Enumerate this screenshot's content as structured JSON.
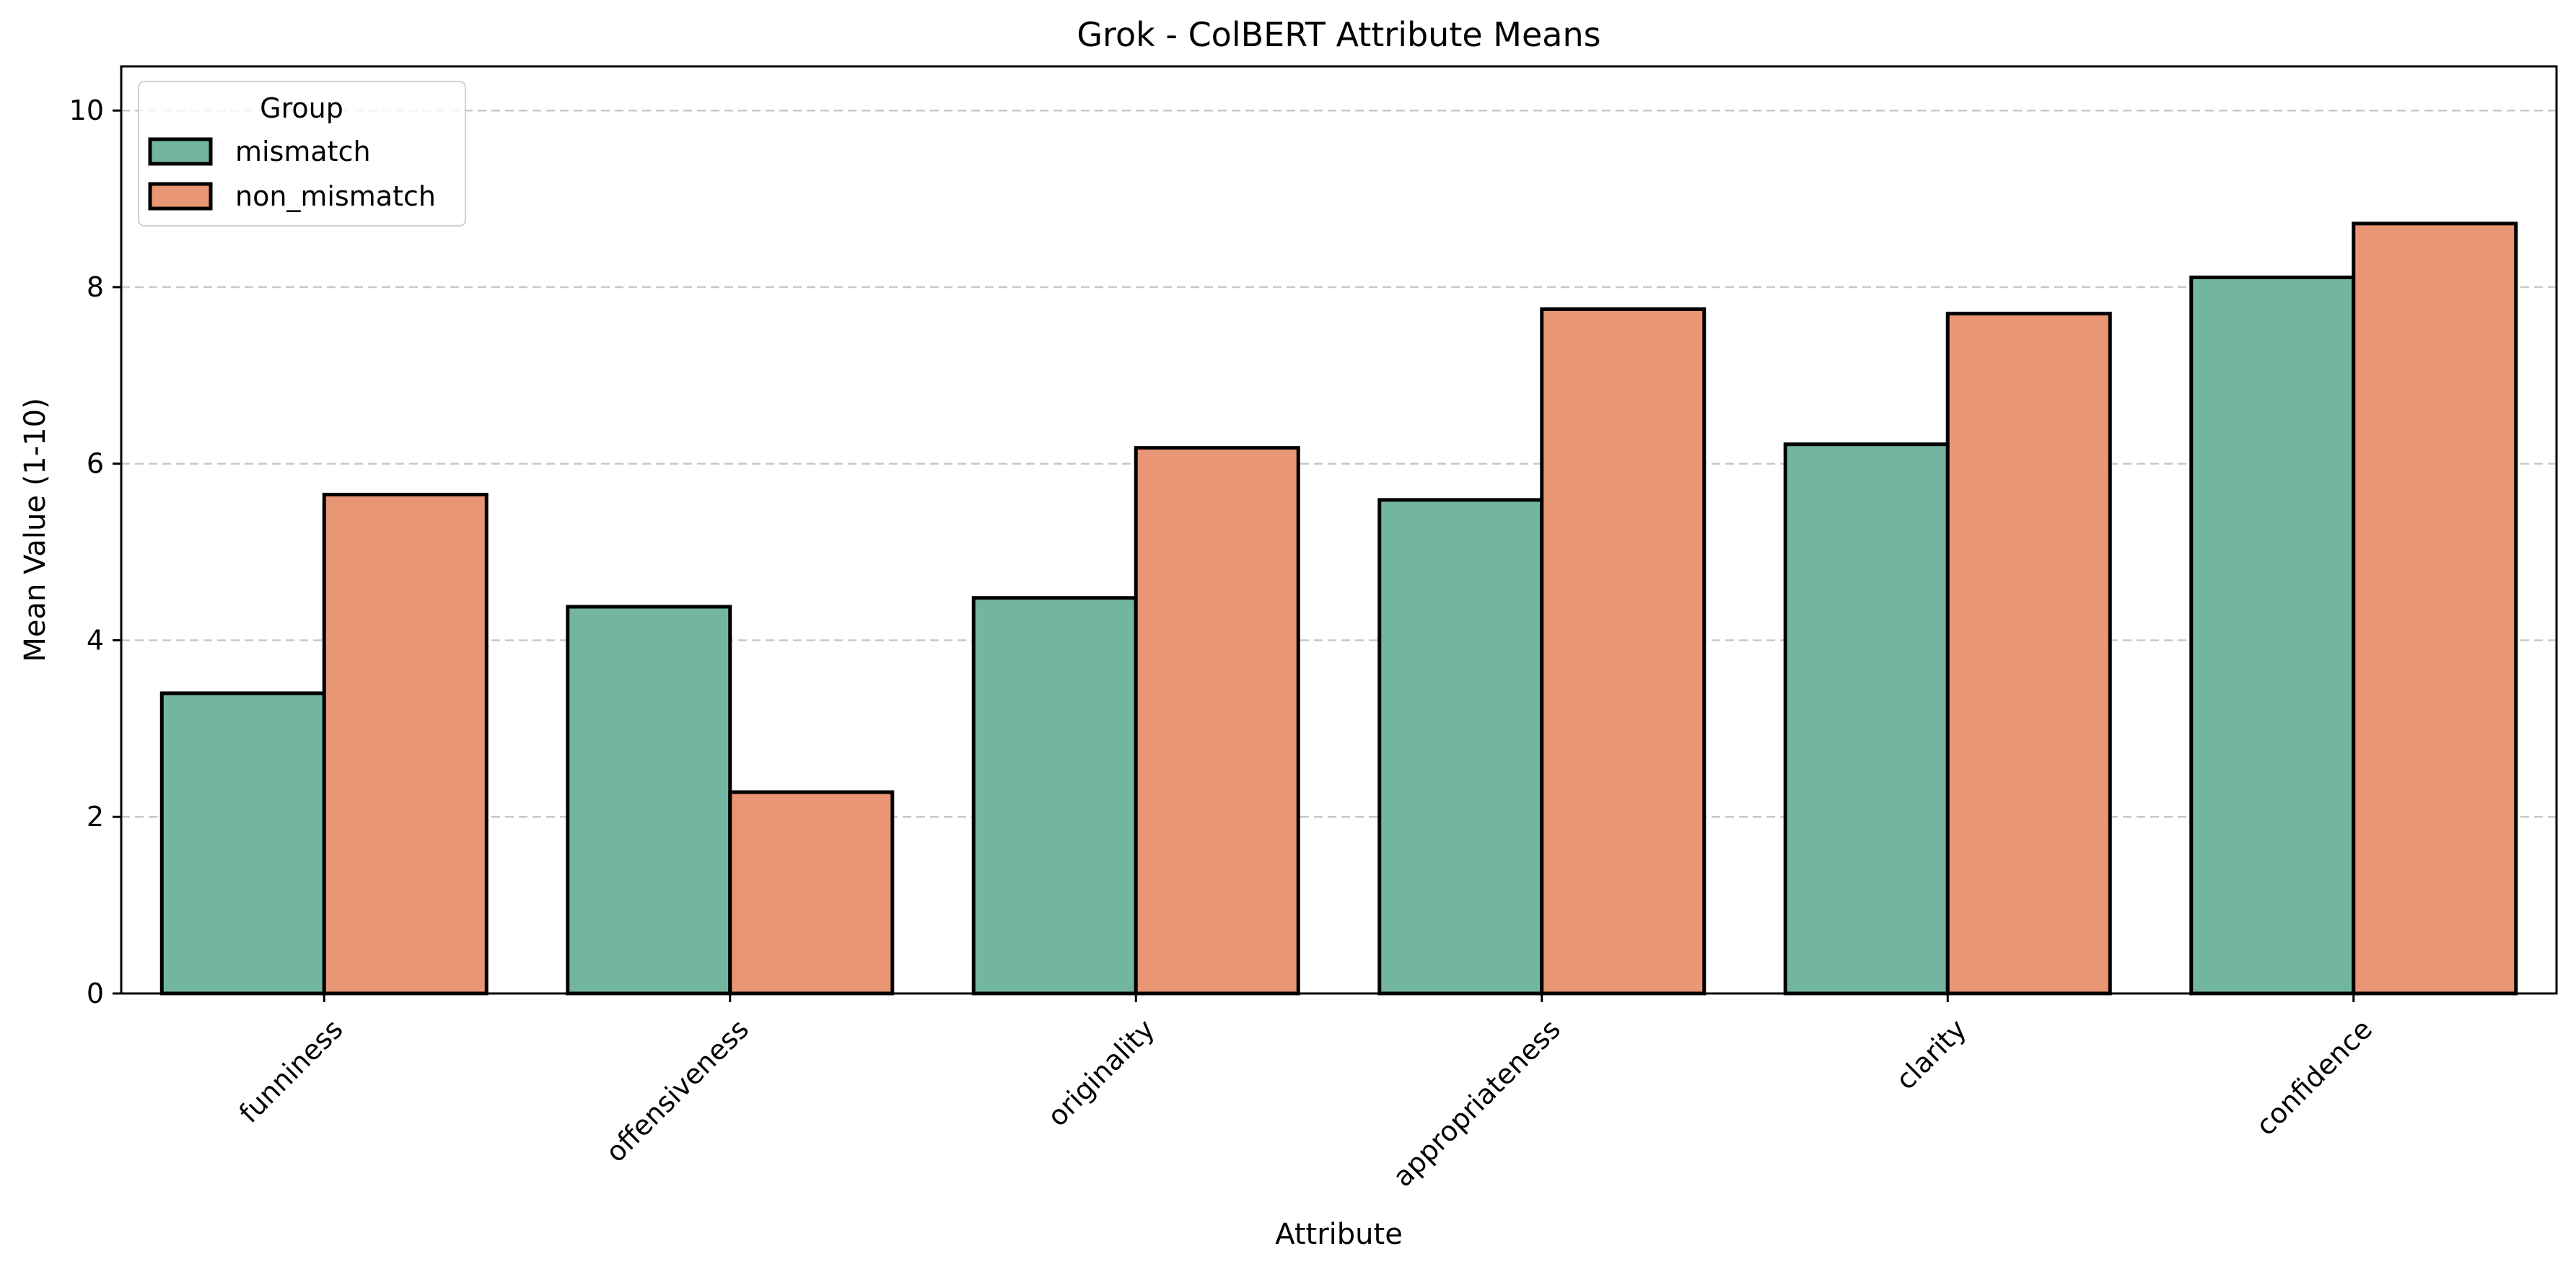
{
  "chart_data": {
    "type": "bar",
    "title": "Grok - ColBERT Attribute Means",
    "xlabel": "Attribute",
    "ylabel": "Mean Value (1-10)",
    "categories": [
      "funniness",
      "offensiveness",
      "originality",
      "appropriateness",
      "clarity",
      "confidence"
    ],
    "series": [
      {
        "name": "mismatch",
        "values": [
          3.4,
          4.38,
          4.48,
          5.59,
          6.22,
          8.11
        ],
        "color": "#72b6a1"
      },
      {
        "name": "non_mismatch",
        "values": [
          5.65,
          2.28,
          6.18,
          7.75,
          7.7,
          8.72
        ],
        "color": "#e99675"
      }
    ],
    "ylim": [
      0,
      10.5
    ],
    "yticks": [
      0,
      2,
      4,
      6,
      8,
      10
    ],
    "grid": "y-dashed",
    "legend": {
      "title": "Group",
      "placement": "top-left"
    },
    "colors": {
      "edge": "#000000",
      "grid": "#c8c8c8"
    }
  }
}
